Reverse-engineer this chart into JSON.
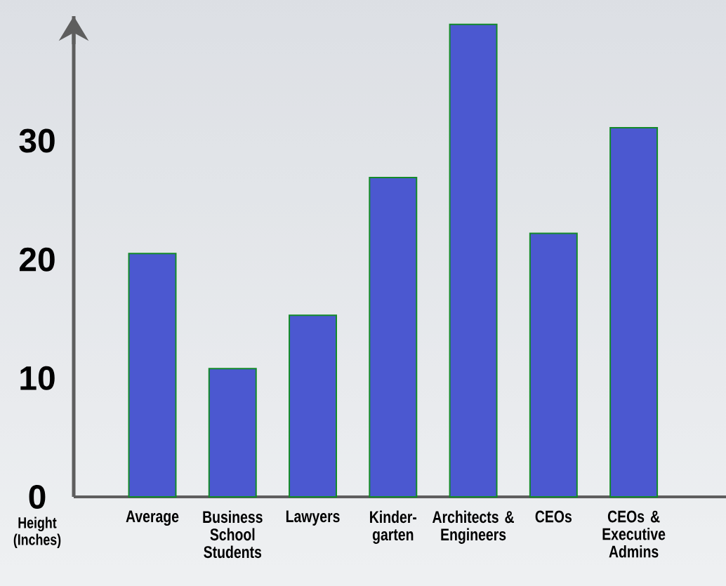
{
  "chart_data": {
    "type": "bar",
    "ylabel": "Height (Inches)",
    "categories": [
      "Average",
      "Business School Students",
      "Lawyers",
      "Kinder-garten",
      "Architects & Engineers",
      "CEOs",
      "CEOs & Executive Admins"
    ],
    "values": [
      20.5,
      10.8,
      15.3,
      26.9,
      39.8,
      22.2,
      31.1
    ],
    "color": "#4b58d0",
    "ylim": [
      0,
      40.5
    ],
    "yticks": [
      0,
      10,
      20,
      30
    ]
  }
}
